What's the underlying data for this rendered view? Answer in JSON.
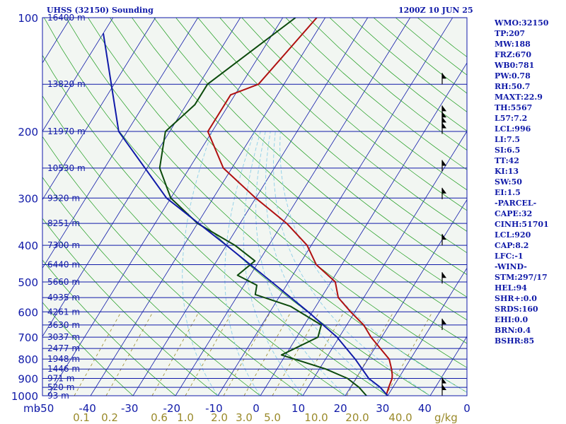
{
  "header": {
    "title_left": "UHSS (32150) Sounding",
    "title_right": "1200Z 10 JUN 25"
  },
  "stats": [
    "WMO:32150",
    "TP:207",
    "MW:188",
    "FRZ:670",
    "WB0:781",
    "PW:0.78",
    "RH:50.7",
    "MAXT:22.9",
    "TH:5567",
    "L57:7.2",
    "LCL:996",
    "LI:7.5",
    "SI:6.5",
    "TT:42",
    "KI:13",
    "SW:50",
    "EI:1.5",
    "-PARCEL-",
    "CAPE:32",
    "CINH:51701",
    "LCL:920",
    "CAP:8.2",
    "LFC:-1",
    "-WIND-",
    "STM:297/17",
    "HEL:94",
    "SHR+:0.0",
    "SRDS:160",
    "EHI:0.0",
    "BRN:0.4",
    "BSHR:85"
  ],
  "colors": {
    "background": "#f2f6f2",
    "isobar": "#101aa8",
    "isotherm": "#101aa8",
    "dry_adiabat": "#1b9b1b",
    "moist_adiabat": "#8ccfe8",
    "mixing_ratio": "#9a8a2a",
    "temperature": "#b01010",
    "dewpoint": "#0c4a0c",
    "parcel": "#101aa8",
    "text": "#101aa8"
  },
  "chart_data": {
    "type": "skew-t",
    "y_axis_unit": "mb",
    "x_axis_unit": "°C",
    "pressure_levels": [
      100,
      200,
      300,
      400,
      500,
      600,
      700,
      800,
      900,
      1000
    ],
    "temperature_ticks": [
      -50,
      -40,
      -30,
      -20,
      -10,
      0,
      10,
      20,
      30,
      40,
      0
    ],
    "mixing_ratio_unit": "g/kg",
    "mixing_ratio_labels": [
      "0.1",
      "0.2",
      "0.6",
      "1.0",
      "2.0",
      "3.0",
      "5.0",
      "10.0",
      "20.0",
      "40.0"
    ],
    "height_labels": [
      {
        "p": 100,
        "label": "16400 m"
      },
      {
        "p": 150,
        "label": "13820 m"
      },
      {
        "p": 200,
        "label": "11970 m"
      },
      {
        "p": 250,
        "label": "10530 m"
      },
      {
        "p": 300,
        "label": "9320 m"
      },
      {
        "p": 350,
        "label": "8251 m"
      },
      {
        "p": 400,
        "label": "7300 m"
      },
      {
        "p": 450,
        "label": "6440 m"
      },
      {
        "p": 500,
        "label": "5660 m"
      },
      {
        "p": 550,
        "label": "4935 m"
      },
      {
        "p": 600,
        "label": "4261 m"
      },
      {
        "p": 650,
        "label": "3630 m"
      },
      {
        "p": 700,
        "label": "3037 m"
      },
      {
        "p": 750,
        "label": "2477 m"
      },
      {
        "p": 800,
        "label": "1948 m"
      },
      {
        "p": 850,
        "label": "1446 m"
      },
      {
        "p": 900,
        "label": "971 m"
      },
      {
        "p": 950,
        "label": "520 m"
      },
      {
        "p": 1000,
        "label": "93 m"
      }
    ],
    "series": [
      {
        "points": [
          [
            100,
            -52
          ],
          [
            150,
            -56
          ],
          [
            160,
            -61
          ],
          [
            200,
            -61
          ],
          [
            250,
            -52
          ],
          [
            300,
            -40
          ],
          [
            350,
            -29
          ],
          [
            400,
            -21
          ],
          [
            450,
            -16
          ],
          [
            500,
            -9
          ],
          [
            550,
            -6
          ],
          [
            600,
            -1
          ],
          [
            650,
            4
          ],
          [
            700,
            7.5
          ],
          [
            800,
            15
          ],
          [
            850,
            17
          ],
          [
            880,
            18
          ],
          [
            900,
            18.5
          ],
          [
            950,
            19
          ],
          [
            990,
            19.5
          ]
        ]
      },
      {
        "points": [
          [
            100,
            -57
          ],
          [
            150,
            -68
          ],
          [
            170,
            -68
          ],
          [
            200,
            -71
          ],
          [
            250,
            -67
          ],
          [
            300,
            -60
          ],
          [
            350,
            -50
          ],
          [
            400,
            -38
          ],
          [
            440,
            -31
          ],
          [
            480,
            -33
          ],
          [
            510,
            -27
          ],
          [
            540,
            -26
          ],
          [
            580,
            -16
          ],
          [
            650,
            -6
          ],
          [
            700,
            -5
          ],
          [
            780,
            -11
          ],
          [
            850,
            1.5
          ],
          [
            900,
            8
          ],
          [
            950,
            12
          ],
          [
            1000,
            15
          ]
        ]
      },
      {
        "points": [
          [
            110,
            -100
          ],
          [
            200,
            -82
          ],
          [
            300,
            -61
          ],
          [
            400,
            -40
          ],
          [
            500,
            -24
          ],
          [
            600,
            -11
          ],
          [
            700,
            -0.5
          ],
          [
            800,
            7
          ],
          [
            900,
            13
          ],
          [
            950,
            17
          ],
          [
            1000,
            20
          ]
        ]
      }
    ],
    "wind_barbs": [
      150,
      183,
      190,
      196,
      203,
      255,
      302,
      400,
      505,
      670,
      960,
      1000
    ]
  }
}
